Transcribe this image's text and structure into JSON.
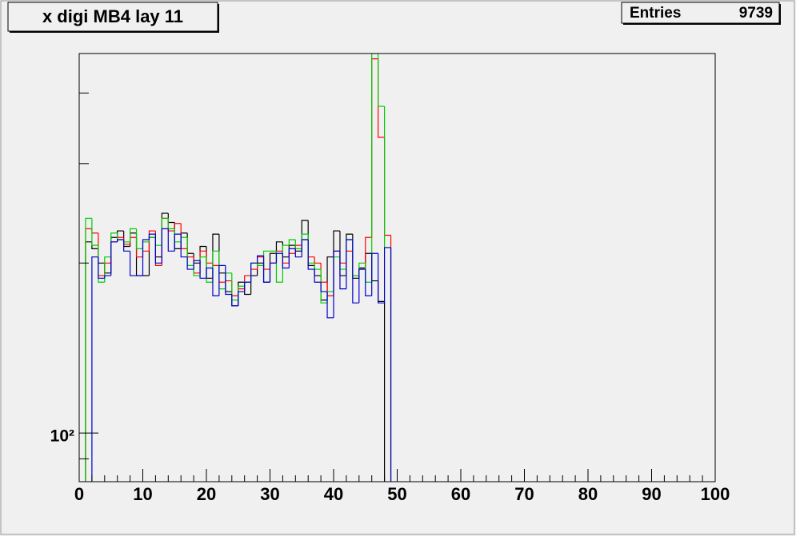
{
  "chart_data": {
    "type": "histogram",
    "title": "x digi MB4 lay 11",
    "stats": {
      "label": "Entries",
      "value": 9739
    },
    "log_y": true,
    "xlim": [
      0,
      100
    ],
    "xticks": [
      0,
      10,
      20,
      30,
      40,
      50,
      60,
      70,
      80,
      90,
      100
    ],
    "xminor_ticks": [
      2,
      4,
      6,
      8,
      12,
      14,
      16,
      18,
      22,
      24,
      26,
      28,
      32,
      34,
      36,
      38,
      42,
      44,
      46,
      48,
      52,
      54,
      56,
      58,
      62,
      64,
      66,
      68,
      72,
      74,
      76,
      78,
      82,
      84,
      86,
      88,
      92,
      94,
      96,
      98
    ],
    "ylim": [
      82,
      470
    ],
    "yticks": [
      {
        "value": 100,
        "label": "10²"
      }
    ],
    "yminor_ticks": [
      90,
      200,
      300,
      400
    ],
    "bins": [
      0,
      1,
      2,
      3,
      4,
      5,
      6,
      7,
      8,
      9,
      10,
      11,
      12,
      13,
      14,
      15,
      16,
      17,
      18,
      19,
      20,
      21,
      22,
      23,
      24,
      25,
      26,
      27,
      28,
      29,
      30,
      31,
      32,
      33,
      34,
      35,
      36,
      37,
      38,
      39,
      40,
      41,
      42,
      43,
      44,
      45,
      46,
      47,
      48,
      49,
      50,
      51,
      52,
      53,
      54,
      55,
      56,
      57,
      58,
      59,
      60,
      61,
      62,
      63,
      64,
      65,
      66,
      67,
      68,
      69,
      70,
      71,
      72,
      73,
      74,
      75,
      76,
      77,
      78,
      79,
      80,
      81,
      82,
      83,
      84,
      85,
      86,
      87,
      88,
      89,
      90,
      91,
      92,
      93,
      94,
      95,
      96,
      97,
      98,
      99,
      100
    ],
    "series": [
      {
        "color": "#000000",
        "values": [
          0,
          218,
          212,
          200,
          192,
          222,
          228,
          214,
          226,
          190,
          190,
          222,
          205,
          245,
          236,
          212,
          226,
          208,
          200,
          214,
          188,
          225,
          192,
          178,
          168,
          185,
          176,
          190,
          200,
          185,
          208,
          218,
          205,
          215,
          210,
          238,
          198,
          190,
          172,
          205,
          228,
          190,
          225,
          188,
          196,
          208,
          186,
          171,
          0,
          0,
          0,
          0,
          0,
          0,
          0,
          0,
          0,
          0,
          0,
          0,
          0,
          0,
          0,
          0,
          0,
          0,
          0,
          0,
          0,
          0,
          0,
          0,
          0,
          0,
          0,
          0,
          0,
          0,
          0,
          0,
          0,
          0,
          0,
          0,
          0,
          0,
          0,
          0,
          0,
          0,
          0,
          0,
          0,
          0,
          0,
          0,
          0,
          0,
          0,
          0
        ]
      },
      {
        "color": "#ff0000",
        "values": [
          0,
          230,
          226,
          190,
          200,
          218,
          222,
          216,
          222,
          205,
          210,
          228,
          198,
          240,
          228,
          235,
          212,
          205,
          192,
          210,
          200,
          198,
          185,
          186,
          175,
          180,
          190,
          195,
          205,
          195,
          200,
          210,
          200,
          208,
          215,
          220,
          205,
          200,
          185,
          175,
          210,
          200,
          210,
          190,
          195,
          222,
          460,
          334,
          224,
          0,
          0,
          0,
          0,
          0,
          0,
          0,
          0,
          0,
          0,
          0,
          0,
          0,
          0,
          0,
          0,
          0,
          0,
          0,
          0,
          0,
          0,
          0,
          0,
          0,
          0,
          0,
          0,
          0,
          0,
          0,
          0,
          0,
          0,
          0,
          0,
          0,
          0,
          0,
          0,
          0,
          0,
          0,
          0,
          0,
          0,
          0,
          0,
          0,
          0,
          0
        ]
      },
      {
        "color": "#00cc00",
        "values": [
          0,
          240,
          215,
          185,
          205,
          226,
          220,
          218,
          230,
          212,
          218,
          222,
          215,
          240,
          230,
          218,
          222,
          198,
          190,
          205,
          185,
          210,
          180,
          192,
          172,
          182,
          185,
          200,
          198,
          210,
          210,
          185,
          215,
          220,
          212,
          225,
          200,
          195,
          170,
          178,
          205,
          195,
          220,
          190,
          200,
          185,
          470,
          379,
          213,
          0,
          0,
          0,
          0,
          0,
          0,
          0,
          0,
          0,
          0,
          0,
          0,
          0,
          0,
          0,
          0,
          0,
          0,
          0,
          0,
          0,
          0,
          0,
          0,
          0,
          0,
          0,
          0,
          0,
          0,
          0,
          0,
          0,
          0,
          0,
          0,
          0,
          0,
          0,
          0,
          0,
          0,
          0,
          0,
          0,
          0,
          0,
          0,
          0,
          0,
          0
        ]
      },
      {
        "color": "#0000cc",
        "values": [
          0,
          0,
          205,
          188,
          190,
          218,
          220,
          210,
          190,
          190,
          220,
          225,
          200,
          230,
          210,
          225,
          205,
          195,
          202,
          188,
          196,
          175,
          198,
          176,
          168,
          178,
          185,
          200,
          206,
          185,
          200,
          208,
          196,
          212,
          205,
          220,
          195,
          185,
          178,
          160,
          210,
          180,
          220,
          170,
          195,
          175,
          208,
          170,
          213,
          0,
          0,
          0,
          0,
          0,
          0,
          0,
          0,
          0,
          0,
          0,
          0,
          0,
          0,
          0,
          0,
          0,
          0,
          0,
          0,
          0,
          0,
          0,
          0,
          0,
          0,
          0,
          0,
          0,
          0,
          0,
          0,
          0,
          0,
          0,
          0,
          0,
          0,
          0,
          0,
          0,
          0,
          0,
          0,
          0,
          0,
          0,
          0,
          0,
          0,
          0
        ]
      }
    ]
  }
}
